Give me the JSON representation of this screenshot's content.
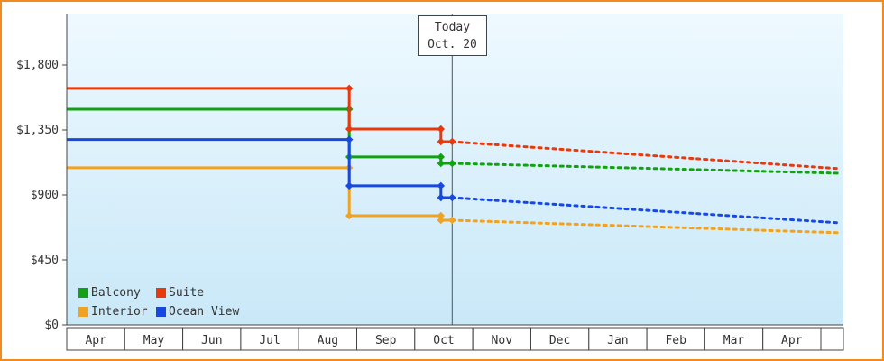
{
  "colors": {
    "frame_border": "#f18a1f",
    "axis": "#444444",
    "today_line": "#555555",
    "text": "#333333",
    "plot_bg_top": "#eef9ff",
    "plot_bg_bottom": "#c9e8f8"
  },
  "chart_data": {
    "type": "line",
    "y_axis": {
      "max_value": 1800,
      "ticks": [
        {
          "label": "$1,800",
          "value": 1800
        },
        {
          "label": "$1,350",
          "value": 1350
        },
        {
          "label": "$900",
          "value": 900
        },
        {
          "label": "$450",
          "value": 450
        },
        {
          "label": "$0",
          "value": 0
        }
      ]
    },
    "x_axis": {
      "months": [
        "Apr",
        "May",
        "Jun",
        "Jul",
        "Aug",
        "Sep",
        "Oct",
        "Nov",
        "Dec",
        "Jan",
        "Feb",
        "Mar",
        "Apr"
      ]
    },
    "today": {
      "line1": "Today",
      "line2": "Oct. 20",
      "x_month_units": 6.645
    },
    "forecast_end_x_month_units": 13.34,
    "series": [
      {
        "name": "Balcony",
        "color": "#14a014",
        "history": [
          {
            "x": 0,
            "v": 1494
          },
          {
            "x": 4.87,
            "v": 1494
          },
          {
            "x": 4.87,
            "v": 1163
          },
          {
            "x": 6.45,
            "v": 1163
          },
          {
            "x": 6.45,
            "v": 1119
          },
          {
            "x": 6.645,
            "v": 1119
          }
        ],
        "forecast_end_value": 1050
      },
      {
        "name": "Suite",
        "color": "#e8390e",
        "history": [
          {
            "x": 0,
            "v": 1638
          },
          {
            "x": 4.87,
            "v": 1638
          },
          {
            "x": 4.87,
            "v": 1356
          },
          {
            "x": 6.45,
            "v": 1356
          },
          {
            "x": 6.45,
            "v": 1269
          },
          {
            "x": 6.645,
            "v": 1269
          }
        ],
        "forecast_end_value": 1081
      },
      {
        "name": "Interior",
        "color": "#f0a322",
        "history": [
          {
            "x": 0,
            "v": 1088
          },
          {
            "x": 4.87,
            "v": 1088
          },
          {
            "x": 4.87,
            "v": 756
          },
          {
            "x": 6.45,
            "v": 756
          },
          {
            "x": 6.45,
            "v": 725
          },
          {
            "x": 6.645,
            "v": 725
          }
        ],
        "forecast_end_value": 638
      },
      {
        "name": "Ocean View",
        "color": "#1748e0",
        "history": [
          {
            "x": 0,
            "v": 1284
          },
          {
            "x": 4.87,
            "v": 1284
          },
          {
            "x": 4.87,
            "v": 963
          },
          {
            "x": 6.45,
            "v": 963
          },
          {
            "x": 6.45,
            "v": 881
          },
          {
            "x": 6.645,
            "v": 881
          }
        ],
        "forecast_end_value": 706
      }
    ],
    "legend": [
      {
        "label": "Balcony",
        "color": "#14a014"
      },
      {
        "label": "Suite",
        "color": "#e8390e"
      },
      {
        "label": "Interior",
        "color": "#f0a322"
      },
      {
        "label": "Ocean View",
        "color": "#1748e0"
      }
    ]
  }
}
